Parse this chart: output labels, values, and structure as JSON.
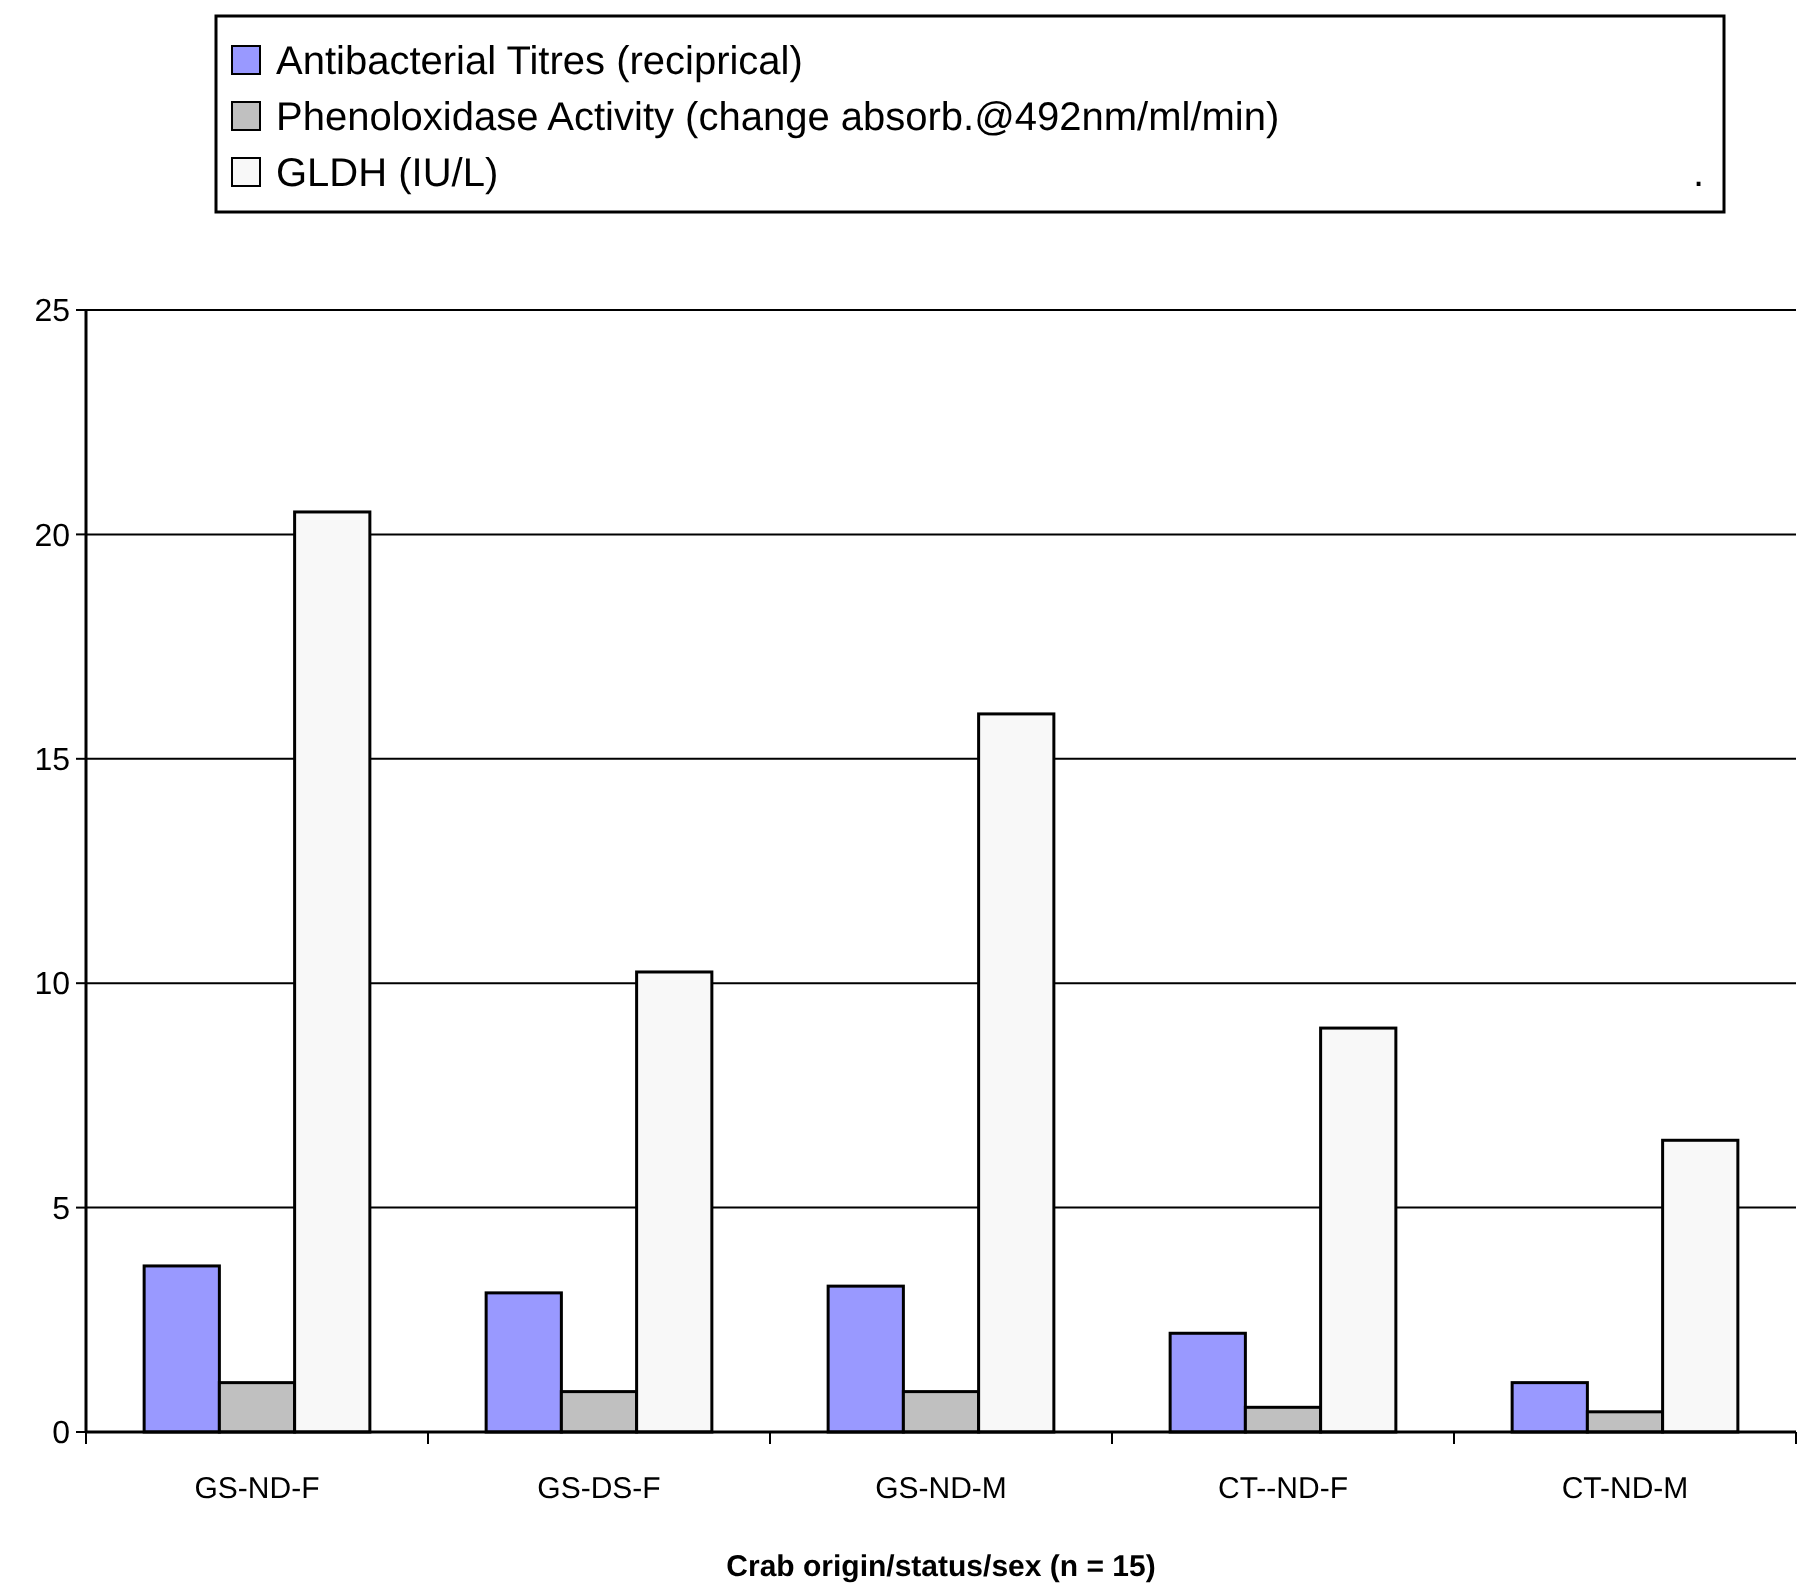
{
  "chart_data": {
    "type": "bar",
    "xlabel": "Crab origin/status/sex (n = 15)",
    "categories": [
      "GS-ND-F",
      "GS-DS-F",
      "GS-ND-M",
      "CT--ND-F",
      "CT-ND-M"
    ],
    "series": [
      {
        "name": "Antibacterial Titres (reciprical)",
        "color": "#9999ff",
        "values": [
          3.7,
          3.1,
          3.25,
          2.2,
          1.1
        ]
      },
      {
        "name": "Phenoloxidase Activity (change absorb.@492nm/ml/min)",
        "color": "#c0c0c0",
        "values": [
          1.1,
          0.9,
          0.9,
          0.55,
          0.45
        ]
      },
      {
        "name": "GLDH (IU/L)",
        "color": "#f8f8f8",
        "values": [
          20.5,
          10.25,
          16,
          9,
          6.5
        ]
      }
    ],
    "ylim": [
      0,
      25
    ],
    "yticks": [
      0,
      5,
      10,
      15,
      20,
      25
    ],
    "grid": "y",
    "legend": "top",
    "annotations": [
      "."
    ]
  }
}
